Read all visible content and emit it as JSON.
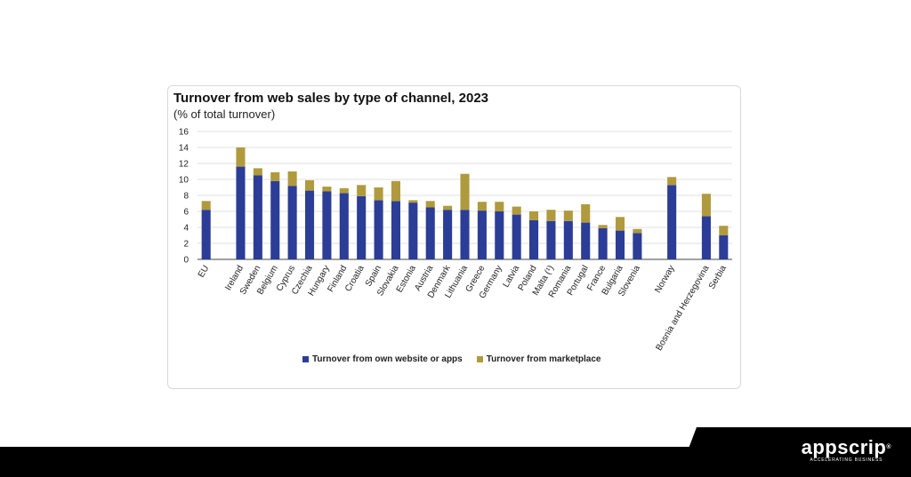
{
  "chart_data": {
    "type": "bar",
    "stacked": true,
    "title": "Turnover from web sales by type of channel, 2023",
    "subtitle": "(% of total turnover)",
    "xlabel": "",
    "ylabel": "",
    "ylim": [
      0,
      16
    ],
    "yticks": [
      0,
      2,
      4,
      6,
      8,
      10,
      12,
      14,
      16
    ],
    "grid": true,
    "categories": [
      "EU",
      "Ireland",
      "Sweden",
      "Belgium",
      "Cyprus",
      "Czechia",
      "Hungary",
      "Finland",
      "Croatia",
      "Spain",
      "Slovakia",
      "Estonia",
      "Austria",
      "Denmark",
      "Lithuania",
      "Greece",
      "Germany",
      "Latvia",
      "Poland",
      "Malta (¹)",
      "Romania",
      "Portugal",
      "France",
      "Bulgaria",
      "Slovenia",
      "Norway",
      "Bosnia and Herzegovina",
      "Serbia"
    ],
    "groups": [
      0,
      1,
      1,
      1,
      1,
      1,
      1,
      1,
      1,
      1,
      1,
      1,
      1,
      1,
      1,
      1,
      1,
      1,
      1,
      1,
      1,
      1,
      1,
      1,
      1,
      2,
      3,
      3
    ],
    "series": [
      {
        "name": "Turnover from own website or apps",
        "color": "#2b3d97",
        "values": [
          6.2,
          11.6,
          10.5,
          9.8,
          9.2,
          8.6,
          8.5,
          8.3,
          7.9,
          7.4,
          7.3,
          7.1,
          6.5,
          6.2,
          6.2,
          6.1,
          6.0,
          5.6,
          4.9,
          4.8,
          4.8,
          4.6,
          3.9,
          3.6,
          3.3,
          9.3,
          5.4,
          3.0
        ]
      },
      {
        "name": "Turnover from marketplace",
        "color": "#b09a3e",
        "values": [
          1.1,
          2.4,
          0.9,
          1.1,
          1.8,
          1.3,
          0.6,
          0.6,
          1.4,
          1.6,
          2.5,
          0.3,
          0.8,
          0.5,
          4.5,
          1.1,
          1.2,
          1.0,
          1.1,
          1.4,
          1.3,
          2.3,
          0.4,
          1.7,
          0.5,
          1.0,
          2.8,
          1.2
        ]
      }
    ],
    "legend_position": "bottom"
  },
  "brand": {
    "name": "appscrip",
    "mark": "®",
    "tagline": "ACCELERATING BUSINESS"
  }
}
